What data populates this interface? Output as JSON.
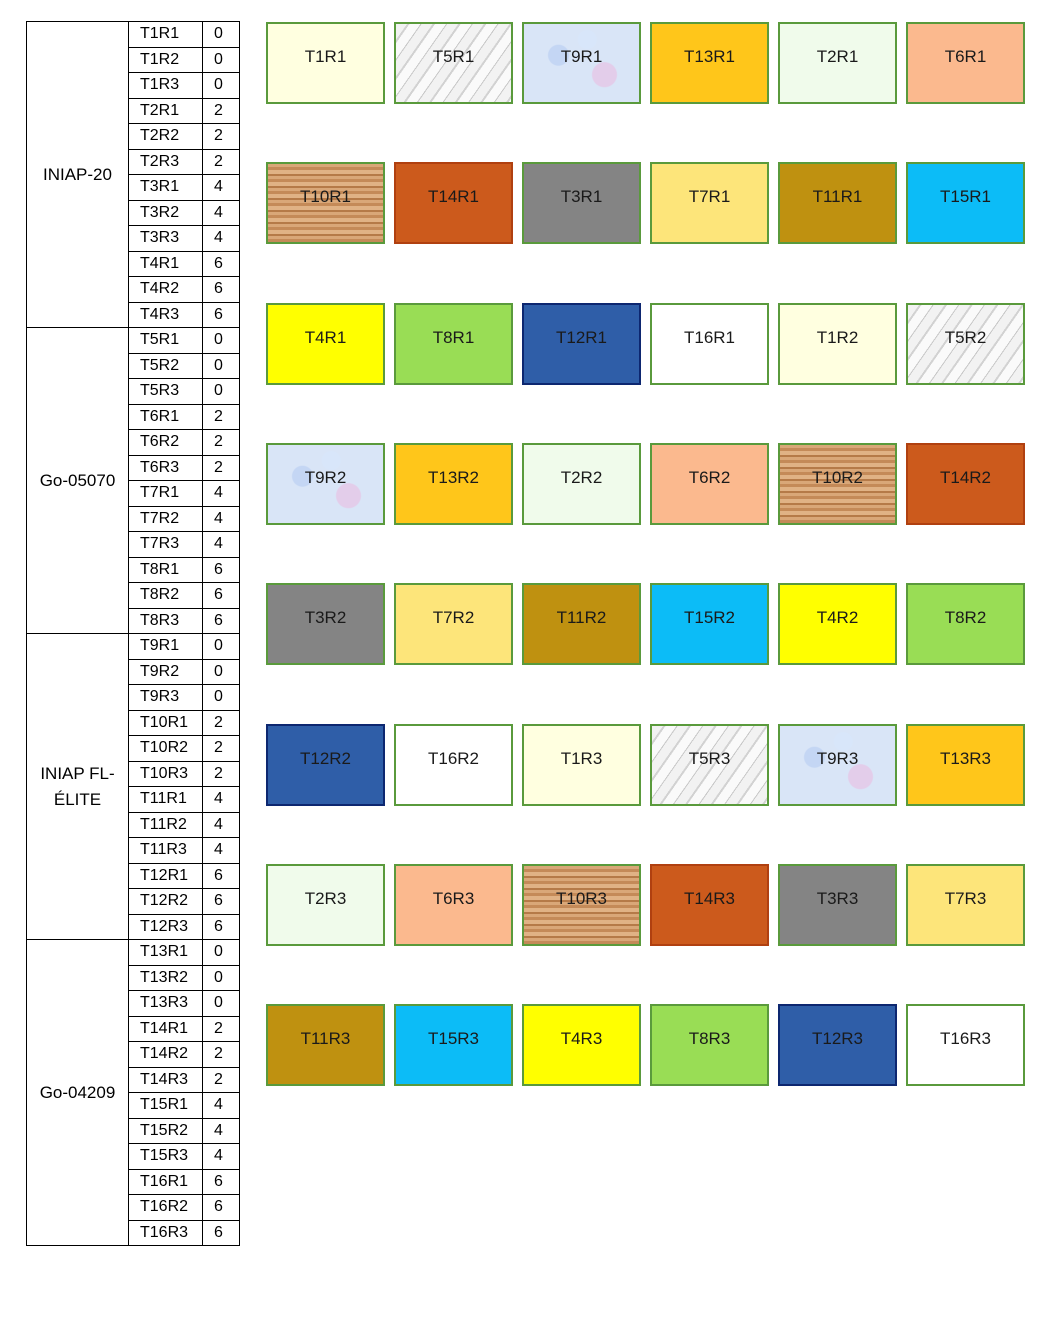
{
  "table": {
    "groups": [
      {
        "variety": "INIAP-20",
        "rows": [
          {
            "code": "T1R1",
            "dose": "0"
          },
          {
            "code": "T1R2",
            "dose": "0"
          },
          {
            "code": "T1R3",
            "dose": "0"
          },
          {
            "code": "T2R1",
            "dose": "2"
          },
          {
            "code": "T2R2",
            "dose": "2"
          },
          {
            "code": "T2R3",
            "dose": "2"
          },
          {
            "code": "T3R1",
            "dose": "4"
          },
          {
            "code": "T3R2",
            "dose": "4"
          },
          {
            "code": "T3R3",
            "dose": "4"
          },
          {
            "code": "T4R1",
            "dose": "6"
          },
          {
            "code": "T4R2",
            "dose": "6"
          },
          {
            "code": "T4R3",
            "dose": "6"
          }
        ]
      },
      {
        "variety": "Go-05070",
        "rows": [
          {
            "code": "T5R1",
            "dose": "0"
          },
          {
            "code": "T5R2",
            "dose": "0"
          },
          {
            "code": "T5R3",
            "dose": "0"
          },
          {
            "code": "T6R1",
            "dose": "2"
          },
          {
            "code": "T6R2",
            "dose": "2"
          },
          {
            "code": "T6R3",
            "dose": "2"
          },
          {
            "code": "T7R1",
            "dose": "4"
          },
          {
            "code": "T7R2",
            "dose": "4"
          },
          {
            "code": "T7R3",
            "dose": "4"
          },
          {
            "code": "T8R1",
            "dose": "6"
          },
          {
            "code": "T8R2",
            "dose": "6"
          },
          {
            "code": "T8R3",
            "dose": "6"
          }
        ]
      },
      {
        "variety": "INIAP FL-\nÉLITE",
        "rows": [
          {
            "code": "T9R1",
            "dose": "0"
          },
          {
            "code": "T9R2",
            "dose": "0"
          },
          {
            "code": "T9R3",
            "dose": "0"
          },
          {
            "code": "T10R1",
            "dose": "2"
          },
          {
            "code": "T10R2",
            "dose": "2"
          },
          {
            "code": "T10R3",
            "dose": "2"
          },
          {
            "code": "T11R1",
            "dose": "4"
          },
          {
            "code": "T11R2",
            "dose": "4"
          },
          {
            "code": "T11R3",
            "dose": "4"
          },
          {
            "code": "T12R1",
            "dose": "6"
          },
          {
            "code": "T12R2",
            "dose": "6"
          },
          {
            "code": "T12R3",
            "dose": "6"
          }
        ]
      },
      {
        "variety": "Go-04209",
        "rows": [
          {
            "code": "T13R1",
            "dose": "0"
          },
          {
            "code": "T13R2",
            "dose": "0"
          },
          {
            "code": "T13R3",
            "dose": "0"
          },
          {
            "code": "T14R1",
            "dose": "2"
          },
          {
            "code": "T14R2",
            "dose": "2"
          },
          {
            "code": "T14R3",
            "dose": "2"
          },
          {
            "code": "T15R1",
            "dose": "4"
          },
          {
            "code": "T15R2",
            "dose": "4"
          },
          {
            "code": "T15R3",
            "dose": "4"
          },
          {
            "code": "T16R1",
            "dose": "6"
          },
          {
            "code": "T16R2",
            "dose": "6"
          },
          {
            "code": "T16R3",
            "dose": "6"
          }
        ]
      }
    ]
  },
  "plots": [
    [
      {
        "label": "T1R1",
        "fill": "cream"
      },
      {
        "label": "T5R1",
        "fill": "marble"
      },
      {
        "label": "T9R1",
        "fill": "granite"
      },
      {
        "label": "T13R1",
        "fill": "amber"
      },
      {
        "label": "T2R1",
        "fill": "mint"
      },
      {
        "label": "T6R1",
        "fill": "peach"
      }
    ],
    [
      {
        "label": "T10R1",
        "fill": "wood"
      },
      {
        "label": "T14R1",
        "fill": "rust"
      },
      {
        "label": "T3R1",
        "fill": "grey"
      },
      {
        "label": "T7R1",
        "fill": "sand"
      },
      {
        "label": "T11R1",
        "fill": "olive"
      },
      {
        "label": "T15R1",
        "fill": "sky"
      }
    ],
    [
      {
        "label": "T4R1",
        "fill": "yellow"
      },
      {
        "label": "T8R1",
        "fill": "lime"
      },
      {
        "label": "T12R1",
        "fill": "navy"
      },
      {
        "label": "T16R1",
        "fill": "white"
      },
      {
        "label": "T1R2",
        "fill": "cream"
      },
      {
        "label": "T5R2",
        "fill": "marble"
      }
    ],
    [
      {
        "label": "T9R2",
        "fill": "granite"
      },
      {
        "label": "T13R2",
        "fill": "amber"
      },
      {
        "label": "T2R2",
        "fill": "mint"
      },
      {
        "label": "T6R2",
        "fill": "peach"
      },
      {
        "label": "T10R2",
        "fill": "wood"
      },
      {
        "label": "T14R2",
        "fill": "rust"
      }
    ],
    [
      {
        "label": "T3R2",
        "fill": "grey"
      },
      {
        "label": "T7R2",
        "fill": "sand"
      },
      {
        "label": "T11R2",
        "fill": "olive"
      },
      {
        "label": "T15R2",
        "fill": "sky"
      },
      {
        "label": "T4R2",
        "fill": "yellow"
      },
      {
        "label": "T8R2",
        "fill": "lime"
      }
    ],
    [
      {
        "label": "T12R2",
        "fill": "navy"
      },
      {
        "label": "T16R2",
        "fill": "white"
      },
      {
        "label": "T1R3",
        "fill": "cream"
      },
      {
        "label": "T5R3",
        "fill": "marble"
      },
      {
        "label": "T9R3",
        "fill": "granite"
      },
      {
        "label": "T13R3",
        "fill": "amber"
      }
    ],
    [
      {
        "label": "T2R3",
        "fill": "mint"
      },
      {
        "label": "T6R3",
        "fill": "peach"
      },
      {
        "label": "T10R3",
        "fill": "wood"
      },
      {
        "label": "T14R3",
        "fill": "rust"
      },
      {
        "label": "T3R3",
        "fill": "grey"
      },
      {
        "label": "T7R3",
        "fill": "sand"
      }
    ],
    [
      {
        "label": "T11R3",
        "fill": "olive"
      },
      {
        "label": "T15R3",
        "fill": "sky"
      },
      {
        "label": "T4R3",
        "fill": "yellow"
      },
      {
        "label": "T8R3",
        "fill": "lime"
      },
      {
        "label": "T12R3",
        "fill": "navy"
      },
      {
        "label": "T16R3",
        "fill": "white"
      }
    ]
  ]
}
